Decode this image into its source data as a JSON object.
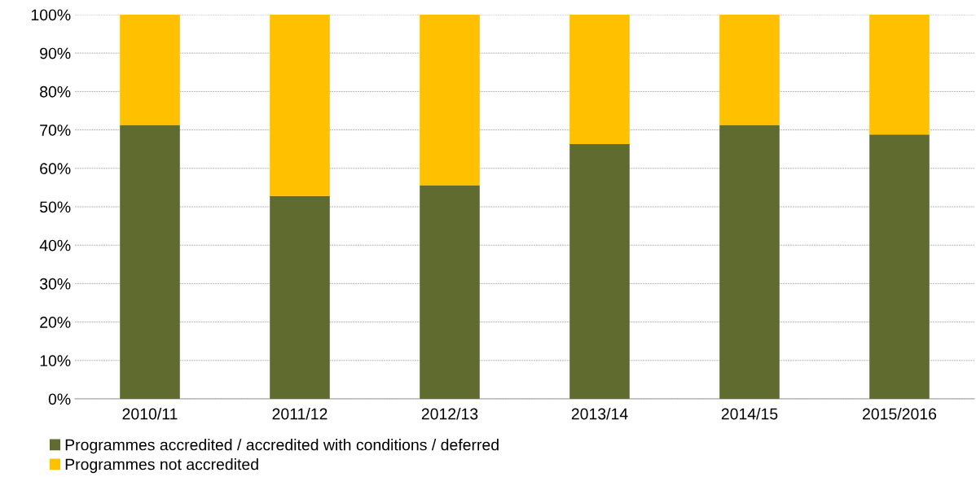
{
  "chart_data": {
    "type": "bar",
    "stacked": true,
    "categories": [
      "2010/11",
      "2011/12",
      "2012/13",
      "2013/14",
      "2014/15",
      "2015/2016"
    ],
    "series": [
      {
        "name": "Programmes accredited / accredited with conditions / deferred",
        "color": "#5f6b2f",
        "values": [
          71.3,
          52.8,
          55.6,
          66.3,
          71.3,
          68.8
        ]
      },
      {
        "name": "Programmes not accredited",
        "color": "#ffc000",
        "values": [
          28.7,
          47.2,
          44.4,
          33.7,
          28.7,
          31.2
        ]
      }
    ],
    "ylim": [
      0,
      100
    ],
    "yticks": [
      {
        "value": 0,
        "label": "0%"
      },
      {
        "value": 10,
        "label": "10%"
      },
      {
        "value": 20,
        "label": "20%"
      },
      {
        "value": 30,
        "label": "30%"
      },
      {
        "value": 40,
        "label": "40%"
      },
      {
        "value": 50,
        "label": "50%"
      },
      {
        "value": 60,
        "label": "60%"
      },
      {
        "value": 70,
        "label": "70%"
      },
      {
        "value": 80,
        "label": "80%"
      },
      {
        "value": 90,
        "label": "90%"
      },
      {
        "value": 100,
        "label": "100%"
      }
    ],
    "grid": "y",
    "legend": "bottom left"
  }
}
